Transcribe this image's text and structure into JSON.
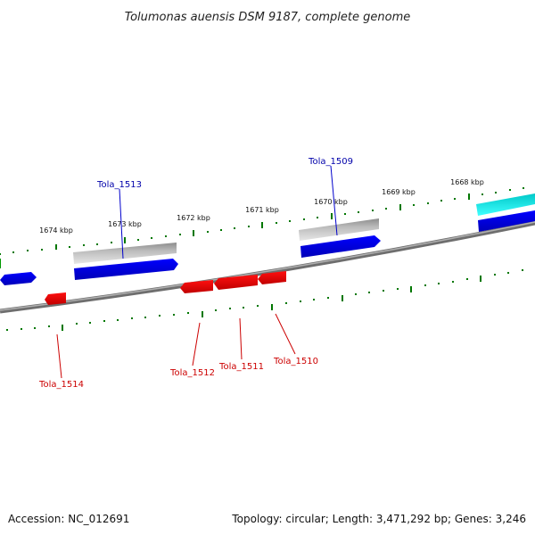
{
  "title": "Tolumonas auensis DSM 9187, complete genome",
  "footer": {
    "accession": "Accession: NC_012691",
    "stats": "Topology: circular; Length: 3,471,292 bp; Genes: 3,246"
  },
  "kbp_labels": [
    "1674 kbp",
    "1673 kbp",
    "1672 kbp",
    "1671 kbp",
    "1670 kbp",
    "1669 kbp",
    "1668 kbp"
  ],
  "gene_labels": {
    "forward": [
      "Tola_1513",
      "Tola_1509"
    ],
    "reverse": [
      "Tola_1514",
      "Tola_1512",
      "Tola_1511",
      "Tola_1510"
    ]
  },
  "colors": {
    "forward_label": "#0000aa",
    "reverse_label": "#cc0000",
    "forward_gene": "#0000ee",
    "reverse_gene": "#ee0000",
    "gray_gene": "#a8a8a8",
    "cyan_gene": "#00e0e0",
    "ticks": "#007700",
    "backbone": "#7a7a7a"
  }
}
